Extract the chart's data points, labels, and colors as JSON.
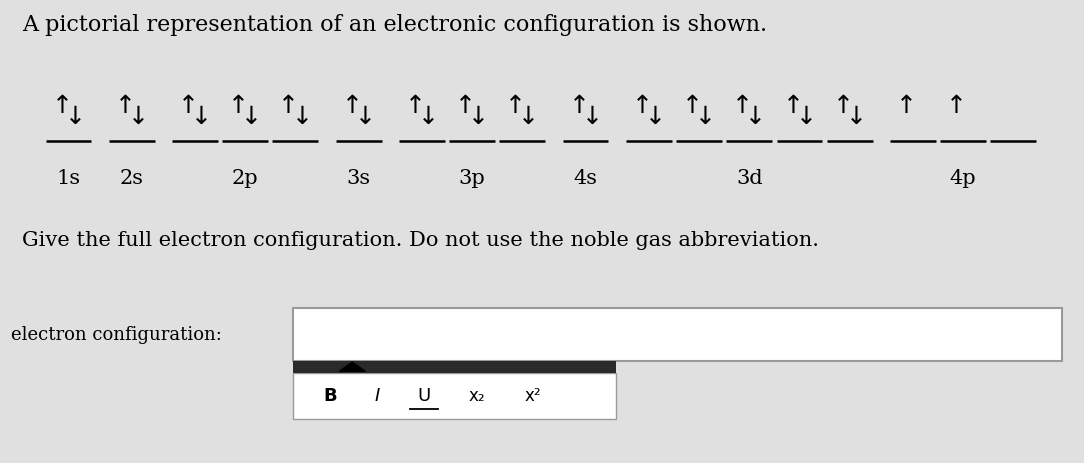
{
  "title": "A pictorial representation of an electronic configuration is shown.",
  "instruction": "Give the full electron configuration. Do not use the noble gas abbreviation.",
  "input_label": "electron configuration:",
  "toolbar_items": [
    "B",
    "I",
    "U",
    "x₂",
    "x²"
  ],
  "bg_color": "#e0e0e0",
  "white_color": "#ffffff",
  "text_color": "#000000",
  "orbitals": [
    {
      "name": "1s",
      "slots": [
        {
          "up": true,
          "down": true
        }
      ]
    },
    {
      "name": "2s",
      "slots": [
        {
          "up": true,
          "down": true
        }
      ]
    },
    {
      "name": "2p",
      "slots": [
        {
          "up": true,
          "down": true
        },
        {
          "up": true,
          "down": true
        },
        {
          "up": true,
          "down": true
        }
      ]
    },
    {
      "name": "3s",
      "slots": [
        {
          "up": true,
          "down": true
        }
      ]
    },
    {
      "name": "3p",
      "slots": [
        {
          "up": true,
          "down": true
        },
        {
          "up": true,
          "down": true
        },
        {
          "up": true,
          "down": true
        }
      ]
    },
    {
      "name": "4s",
      "slots": [
        {
          "up": true,
          "down": true
        }
      ]
    },
    {
      "name": "3d",
      "slots": [
        {
          "up": true,
          "down": true
        },
        {
          "up": true,
          "down": true
        },
        {
          "up": true,
          "down": true
        },
        {
          "up": true,
          "down": true
        },
        {
          "up": true,
          "down": true
        }
      ]
    },
    {
      "name": "4p",
      "slots": [
        {
          "up": true,
          "down": false
        },
        {
          "up": true,
          "down": false
        },
        {
          "up": false,
          "down": false
        }
      ]
    }
  ],
  "arrow_up": "↑",
  "arrow_down": "↓",
  "arrow_fontsize": 18,
  "label_fontsize": 15,
  "title_fontsize": 16,
  "instruction_fontsize": 15
}
